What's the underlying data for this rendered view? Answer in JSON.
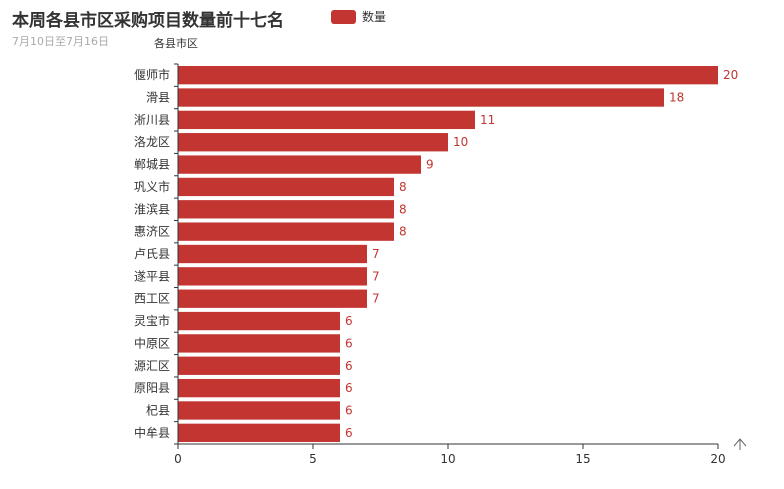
{
  "title": "本周各县市区采购项目数量前十七名",
  "subtitle": "7月10日至7月16日",
  "legend": {
    "label": "数量",
    "color": "#c23531"
  },
  "chart_data": {
    "type": "bar",
    "orientation": "horizontal",
    "ylabel": "各县市区",
    "xlabel": "",
    "categories": [
      "偃师市",
      "滑县",
      "淅川县",
      "洛龙区",
      "郸城县",
      "巩义市",
      "淮滨县",
      "惠济区",
      "卢氏县",
      "遂平县",
      "西工区",
      "灵宝市",
      "中原区",
      "源汇区",
      "原阳县",
      "杞县",
      "中牟县"
    ],
    "series": [
      {
        "name": "数量",
        "values": [
          20,
          18,
          11,
          10,
          9,
          8,
          8,
          8,
          7,
          7,
          7,
          6,
          6,
          6,
          6,
          6,
          6
        ]
      }
    ],
    "xlim": [
      0,
      20
    ],
    "xticks": [
      0,
      5,
      10,
      15,
      20
    ],
    "grid": false,
    "legend_position": "top",
    "data_labels": true,
    "bar_color": "#c23531"
  },
  "toolbox": {
    "icon": "arrow-up-icon"
  }
}
